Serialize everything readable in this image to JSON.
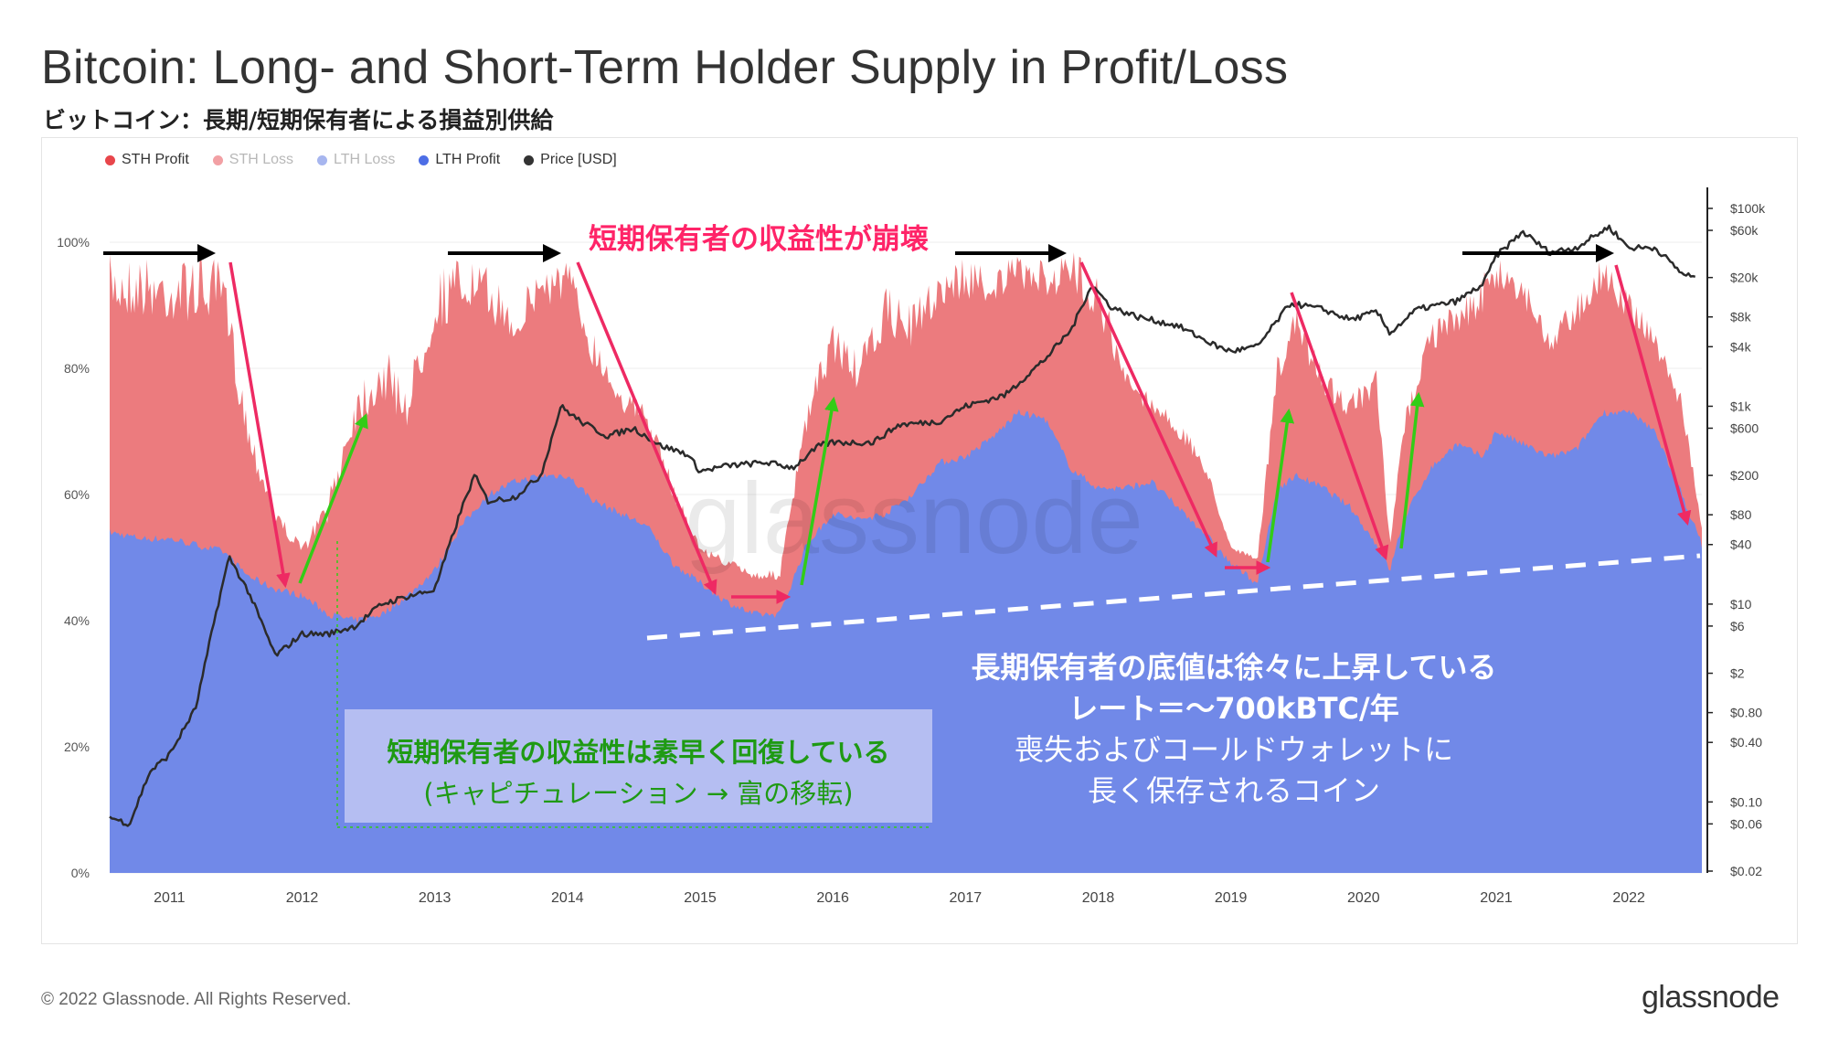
{
  "title": "Bitcoin: Long- and Short-Term Holder Supply in Profit/Loss",
  "subtitle": "ビットコイン：長期/短期保有者による損益別供給",
  "legend": [
    {
      "label": "STH Profit",
      "color": "#e8464b"
    },
    {
      "label": "STH Loss",
      "color": "#f2a0a4"
    },
    {
      "label": "LTH Loss",
      "color": "#a7b6ef"
    },
    {
      "label": "LTH Profit",
      "color": "#4d6ee6"
    },
    {
      "label": "Price [USD]",
      "color": "#333333"
    }
  ],
  "annotations": {
    "sth_collapse": "短期保有者の収益性が崩壊",
    "lth_floor_line1": "長期保有者の底値は徐々に上昇している",
    "lth_floor_line2": "レート＝〜700kBTC/年",
    "lth_floor_line3": "喪失およびコールドウォレットに",
    "lth_floor_line4": "長く保存されるコイン",
    "sth_recovery_line1": "短期保有者の収益性は素早く回復している",
    "sth_recovery_line2": "(キャピチュレーション → 富の移転)"
  },
  "watermark": "glassnode",
  "footer": {
    "copyright": "© 2022 Glassnode. All Rights Reserved.",
    "logo": "glassnode"
  },
  "colors": {
    "sth_profit": "#ec7b7e",
    "lth_profit": "#7189e8",
    "price": "#2b2b2b",
    "red_arrow": "#ee2a63",
    "green_arrow": "#33cc17",
    "annotation_red": "#ff2468",
    "annotation_green": "#1f9a14"
  },
  "chart_data": {
    "type": "area",
    "x_label": "",
    "x_ticks": [
      "2011",
      "2012",
      "2013",
      "2014",
      "2015",
      "2016",
      "2017",
      "2018",
      "2019",
      "2020",
      "2021",
      "2022"
    ],
    "y_left_ticks": [
      "0%",
      "20%",
      "40%",
      "60%",
      "80%",
      "100%"
    ],
    "y_right_ticks": [
      "$0.02",
      "$0.06",
      "$0.10",
      "$0.40",
      "$0.80",
      "$2",
      "$6",
      "$10",
      "$40",
      "$80",
      "$200",
      "$600",
      "$1k",
      "$4k",
      "$8k",
      "$20k",
      "$60k",
      "$100k"
    ],
    "y_left_range": [
      0,
      100
    ],
    "y_right_range_usd": [
      0.02,
      100000
    ],
    "y_right_scale": "log",
    "series": [
      {
        "name": "LTH Profit",
        "unit": "% of supply (top of LTH band)",
        "points": [
          [
            2010.55,
            54
          ],
          [
            2010.8,
            53
          ],
          [
            2011.0,
            53
          ],
          [
            2011.2,
            52
          ],
          [
            2011.4,
            51
          ],
          [
            2011.6,
            47
          ],
          [
            2011.8,
            45
          ],
          [
            2012.0,
            44
          ],
          [
            2012.2,
            41
          ],
          [
            2012.4,
            40
          ],
          [
            2012.6,
            41
          ],
          [
            2012.8,
            44
          ],
          [
            2013.0,
            48
          ],
          [
            2013.2,
            55
          ],
          [
            2013.4,
            60
          ],
          [
            2013.6,
            62
          ],
          [
            2013.8,
            63
          ],
          [
            2014.0,
            63
          ],
          [
            2014.2,
            59
          ],
          [
            2014.4,
            57
          ],
          [
            2014.6,
            55
          ],
          [
            2014.8,
            49
          ],
          [
            2015.0,
            46
          ],
          [
            2015.2,
            43
          ],
          [
            2015.4,
            41
          ],
          [
            2015.6,
            41
          ],
          [
            2015.8,
            52
          ],
          [
            2016.0,
            57
          ],
          [
            2016.2,
            56
          ],
          [
            2016.4,
            57
          ],
          [
            2016.6,
            60
          ],
          [
            2016.8,
            65
          ],
          [
            2017.0,
            66
          ],
          [
            2017.2,
            69
          ],
          [
            2017.4,
            73
          ],
          [
            2017.6,
            72
          ],
          [
            2017.8,
            64
          ],
          [
            2018.0,
            61
          ],
          [
            2018.2,
            61
          ],
          [
            2018.4,
            62
          ],
          [
            2018.6,
            58
          ],
          [
            2018.8,
            54
          ],
          [
            2019.0,
            49
          ],
          [
            2019.2,
            46
          ],
          [
            2019.35,
            61
          ],
          [
            2019.5,
            63
          ],
          [
            2019.7,
            61
          ],
          [
            2019.9,
            58
          ],
          [
            2020.1,
            52
          ],
          [
            2020.2,
            48
          ],
          [
            2020.3,
            56
          ],
          [
            2020.5,
            64
          ],
          [
            2020.7,
            68
          ],
          [
            2020.9,
            66
          ],
          [
            2021.0,
            70
          ],
          [
            2021.2,
            68
          ],
          [
            2021.4,
            66
          ],
          [
            2021.6,
            67
          ],
          [
            2021.8,
            73
          ],
          [
            2022.0,
            73
          ],
          [
            2022.2,
            70
          ],
          [
            2022.4,
            60
          ],
          [
            2022.55,
            52
          ]
        ]
      },
      {
        "name": "STH Profit",
        "unit": "% of supply (top of STH band)",
        "points": [
          [
            2010.55,
            98
          ],
          [
            2010.8,
            98
          ],
          [
            2011.0,
            97
          ],
          [
            2011.2,
            98
          ],
          [
            2011.4,
            97
          ],
          [
            2011.6,
            72
          ],
          [
            2011.8,
            58
          ],
          [
            2012.0,
            52
          ],
          [
            2012.2,
            60
          ],
          [
            2012.4,
            78
          ],
          [
            2012.6,
            84
          ],
          [
            2012.8,
            78
          ],
          [
            2013.0,
            96
          ],
          [
            2013.2,
            98
          ],
          [
            2013.4,
            96
          ],
          [
            2013.6,
            90
          ],
          [
            2013.8,
            97
          ],
          [
            2014.0,
            98
          ],
          [
            2014.2,
            86
          ],
          [
            2014.4,
            78
          ],
          [
            2014.6,
            74
          ],
          [
            2014.8,
            62
          ],
          [
            2015.0,
            52
          ],
          [
            2015.2,
            50
          ],
          [
            2015.4,
            48
          ],
          [
            2015.6,
            48
          ],
          [
            2015.8,
            74
          ],
          [
            2016.0,
            88
          ],
          [
            2016.2,
            82
          ],
          [
            2016.4,
            93
          ],
          [
            2016.6,
            90
          ],
          [
            2016.8,
            96
          ],
          [
            2017.0,
            98
          ],
          [
            2017.2,
            96
          ],
          [
            2017.4,
            98
          ],
          [
            2017.6,
            97
          ],
          [
            2017.8,
            99
          ],
          [
            2018.0,
            96
          ],
          [
            2018.2,
            80
          ],
          [
            2018.4,
            76
          ],
          [
            2018.6,
            72
          ],
          [
            2018.8,
            66
          ],
          [
            2019.0,
            52
          ],
          [
            2019.2,
            50
          ],
          [
            2019.35,
            82
          ],
          [
            2019.5,
            90
          ],
          [
            2019.7,
            80
          ],
          [
            2019.9,
            76
          ],
          [
            2020.1,
            80
          ],
          [
            2020.2,
            52
          ],
          [
            2020.3,
            72
          ],
          [
            2020.5,
            88
          ],
          [
            2020.7,
            90
          ],
          [
            2020.9,
            95
          ],
          [
            2021.0,
            98
          ],
          [
            2021.2,
            96
          ],
          [
            2021.4,
            86
          ],
          [
            2021.6,
            92
          ],
          [
            2021.8,
            98
          ],
          [
            2022.0,
            92
          ],
          [
            2022.2,
            86
          ],
          [
            2022.4,
            76
          ],
          [
            2022.55,
            55
          ]
        ]
      },
      {
        "name": "Price [USD]",
        "unit": "USD (log scale)",
        "points": [
          [
            2010.55,
            0.07
          ],
          [
            2010.7,
            0.06
          ],
          [
            2010.85,
            0.2
          ],
          [
            2011.0,
            0.3
          ],
          [
            2011.2,
            0.9
          ],
          [
            2011.35,
            8
          ],
          [
            2011.45,
            30
          ],
          [
            2011.6,
            13
          ],
          [
            2011.8,
            3
          ],
          [
            2012.0,
            5
          ],
          [
            2012.2,
            5
          ],
          [
            2012.4,
            6
          ],
          [
            2012.6,
            10
          ],
          [
            2012.8,
            12
          ],
          [
            2013.0,
            14
          ],
          [
            2013.2,
            90
          ],
          [
            2013.3,
            200
          ],
          [
            2013.4,
            110
          ],
          [
            2013.6,
            120
          ],
          [
            2013.8,
            200
          ],
          [
            2013.95,
            1000
          ],
          [
            2014.1,
            700
          ],
          [
            2014.3,
            500
          ],
          [
            2014.5,
            600
          ],
          [
            2014.7,
            400
          ],
          [
            2014.9,
            330
          ],
          [
            2015.0,
            220
          ],
          [
            2015.2,
            250
          ],
          [
            2015.5,
            270
          ],
          [
            2015.7,
            240
          ],
          [
            2015.9,
            400
          ],
          [
            2016.0,
            430
          ],
          [
            2016.3,
            430
          ],
          [
            2016.5,
            650
          ],
          [
            2016.8,
            700
          ],
          [
            2017.0,
            1000
          ],
          [
            2017.3,
            1300
          ],
          [
            2017.6,
            3000
          ],
          [
            2017.8,
            6000
          ],
          [
            2017.95,
            17000
          ],
          [
            2018.1,
            10000
          ],
          [
            2018.3,
            8000
          ],
          [
            2018.6,
            6500
          ],
          [
            2018.9,
            4000
          ],
          [
            2019.0,
            3600
          ],
          [
            2019.2,
            4000
          ],
          [
            2019.45,
            11000
          ],
          [
            2019.7,
            9500
          ],
          [
            2019.9,
            7500
          ],
          [
            2020.1,
            9000
          ],
          [
            2020.2,
            5500
          ],
          [
            2020.4,
            9500
          ],
          [
            2020.7,
            11500
          ],
          [
            2020.9,
            17000
          ],
          [
            2021.0,
            33000
          ],
          [
            2021.2,
            58000
          ],
          [
            2021.4,
            36000
          ],
          [
            2021.6,
            40000
          ],
          [
            2021.85,
            65000
          ],
          [
            2022.0,
            40000
          ],
          [
            2022.2,
            40000
          ],
          [
            2022.4,
            22000
          ],
          [
            2022.5,
            20000
          ]
        ]
      }
    ]
  }
}
